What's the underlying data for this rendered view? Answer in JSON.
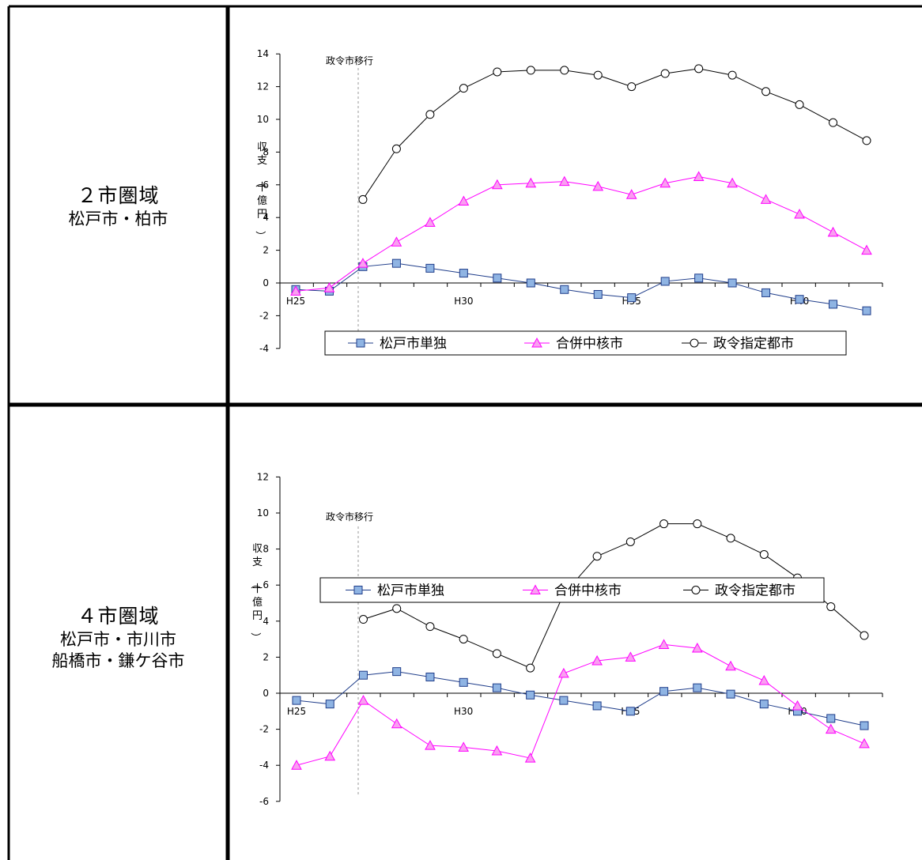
{
  "rows": [
    {
      "title": "２市圏域",
      "members": [
        "松戸市・柏市"
      ]
    },
    {
      "title": "４市圏域",
      "members": [
        "松戸市・市川市",
        "船橋市・鎌ケ谷市"
      ]
    }
  ],
  "colors": {
    "matsudo": "#1F3D8A",
    "matsudo_fill": "#8FB4E3",
    "core": "#FF00FF",
    "core_fill": "#F9A0F0",
    "designated": "#000000",
    "designated_fill": "#FFFFFF"
  },
  "chart_data": [
    {
      "type": "line",
      "title": "",
      "ylabel": "収支（十億円）",
      "ylim": [
        -4,
        14
      ],
      "yticks": [
        -4,
        -2,
        0,
        2,
        4,
        6,
        8,
        10,
        12,
        14
      ],
      "x": [
        "H25",
        "H26",
        "H27",
        "H28",
        "H29",
        "H30",
        "H31",
        "H32",
        "H33",
        "H34",
        "H35",
        "H36",
        "H37",
        "H38",
        "H39",
        "H40",
        "H41",
        "H42"
      ],
      "xtick_labels": [
        "H25",
        "H30",
        "H35",
        "H40"
      ],
      "annotation": "政令市移行",
      "series": [
        {
          "name": "松戸市単独",
          "marker": "square",
          "values": [
            -0.4,
            -0.5,
            1.0,
            1.2,
            0.9,
            0.6,
            0.3,
            0.0,
            -0.4,
            -0.7,
            -0.9,
            0.1,
            0.3,
            0.0,
            -0.6,
            -1.0,
            -1.3,
            -1.7
          ]
        },
        {
          "name": "合併中核市",
          "marker": "triangle",
          "values": [
            -0.5,
            -0.3,
            1.2,
            2.5,
            3.7,
            5.0,
            6.0,
            6.1,
            6.2,
            5.9,
            5.4,
            6.1,
            6.5,
            6.1,
            5.1,
            4.2,
            3.1,
            2.0
          ]
        },
        {
          "name": "政令指定都市",
          "marker": "circle",
          "values": [
            null,
            null,
            5.1,
            8.2,
            10.3,
            11.9,
            12.9,
            13.0,
            13.0,
            12.7,
            12.0,
            12.8,
            13.1,
            12.7,
            11.7,
            10.9,
            9.8,
            8.7
          ]
        }
      ]
    },
    {
      "type": "line",
      "title": "",
      "ylabel": "収支（十億円）",
      "ylim": [
        -6,
        12
      ],
      "yticks": [
        -6,
        -4,
        -2,
        0,
        2,
        4,
        6,
        8,
        10,
        12
      ],
      "x": [
        "H25",
        "H26",
        "H27",
        "H28",
        "H29",
        "H30",
        "H31",
        "H32",
        "H33",
        "H34",
        "H35",
        "H36",
        "H37",
        "H38",
        "H39",
        "H40",
        "H41",
        "H42"
      ],
      "xtick_labels": [
        "H25",
        "H30",
        "H35",
        "H40"
      ],
      "annotation": "政令市移行",
      "series": [
        {
          "name": "松戸市単独",
          "marker": "square",
          "values": [
            -0.4,
            -0.6,
            1.0,
            1.2,
            0.9,
            0.6,
            0.3,
            -0.1,
            -0.4,
            -0.7,
            -1.0,
            0.1,
            0.3,
            -0.05,
            -0.6,
            -1.0,
            -1.4,
            -1.8
          ]
        },
        {
          "name": "合併中核市",
          "marker": "triangle",
          "values": [
            -4.0,
            -3.5,
            -0.4,
            -1.7,
            -2.9,
            -3.0,
            -3.2,
            -3.6,
            1.1,
            1.8,
            2.0,
            2.7,
            2.5,
            1.5,
            0.7,
            -0.7,
            -2.0,
            -2.8
          ]
        },
        {
          "name": "政令指定都市",
          "marker": "circle",
          "values": [
            null,
            null,
            4.1,
            4.7,
            3.7,
            3.0,
            2.2,
            1.4,
            5.5,
            7.6,
            8.4,
            9.4,
            9.4,
            8.6,
            7.7,
            6.4,
            4.8,
            3.2
          ]
        }
      ]
    }
  ]
}
